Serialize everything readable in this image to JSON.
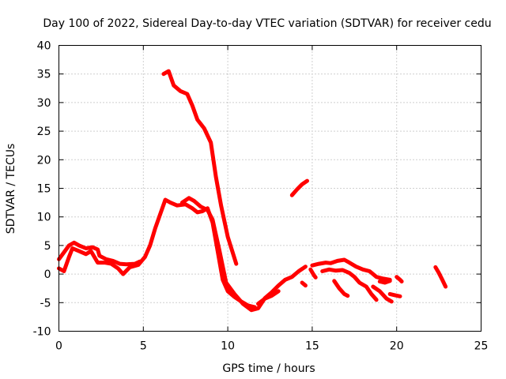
{
  "chart_data": {
    "type": "scatter",
    "title": "Day 100 of 2022, Sidereal Day-to-day VTEC variation (SDTVAR) for receiver cedu",
    "xlabel": "GPS time / hours",
    "ylabel": "SDTVAR / TECUs",
    "xlim": [
      0,
      25
    ],
    "ylim": [
      -10,
      40
    ],
    "xticks": [
      0,
      5,
      10,
      15,
      20,
      25
    ],
    "yticks": [
      -10,
      -5,
      0,
      5,
      10,
      15,
      20,
      25,
      30,
      35,
      40
    ],
    "grid": true,
    "colors": {
      "series": "#ff0000",
      "grid": "#a0a0a0",
      "axis": "#000000"
    },
    "series": [
      {
        "name": "trace-1",
        "points": [
          [
            0,
            1
          ],
          [
            0.3,
            0.5
          ],
          [
            0.6,
            3
          ],
          [
            0.8,
            4.5
          ],
          [
            1.2,
            4
          ],
          [
            1.6,
            3.5
          ],
          [
            1.9,
            4
          ],
          [
            2.3,
            2
          ],
          [
            2.7,
            2
          ],
          [
            3.1,
            1.8
          ],
          [
            3.5,
            1
          ],
          [
            3.8,
            0
          ],
          [
            4.2,
            1.2
          ],
          [
            4.7,
            1.6
          ],
          [
            5.1,
            3
          ],
          [
            5.4,
            5
          ],
          [
            5.7,
            8
          ],
          [
            6,
            10.5
          ],
          [
            6.3,
            13
          ],
          [
            6.6,
            12.5
          ],
          [
            7,
            12
          ],
          [
            7.5,
            12.2
          ],
          [
            7.9,
            11.5
          ],
          [
            8.2,
            10.8
          ],
          [
            8.5,
            11
          ],
          [
            8.8,
            11.5
          ],
          [
            9.1,
            9
          ],
          [
            9.4,
            4
          ],
          [
            9.7,
            -1
          ],
          [
            10,
            -3
          ],
          [
            10.4,
            -4
          ],
          [
            10.8,
            -4.8
          ],
          [
            11.2,
            -5.5
          ],
          [
            11.6,
            -5.8
          ]
        ]
      },
      {
        "name": "trace-2",
        "points": [
          [
            0,
            2.6
          ],
          [
            0.3,
            3.8
          ],
          [
            0.6,
            5
          ],
          [
            0.9,
            5.5
          ],
          [
            1.2,
            5
          ],
          [
            1.6,
            4.5
          ],
          [
            2,
            4.7
          ],
          [
            2.3,
            4.3
          ],
          [
            2.4,
            3.2
          ],
          [
            2.8,
            2.6
          ],
          [
            3.2,
            2.3
          ],
          [
            3.6,
            1.8
          ],
          [
            4,
            1.7
          ],
          [
            4.5,
            1.8
          ],
          [
            4.8,
            2.2
          ]
        ]
      },
      {
        "name": "trace-3",
        "points": [
          [
            6.2,
            35
          ],
          [
            6.5,
            35.5
          ],
          [
            6.8,
            33
          ],
          [
            7.2,
            32
          ],
          [
            7.6,
            31.5
          ],
          [
            7.9,
            29.5
          ],
          [
            8.2,
            27
          ],
          [
            8.6,
            25.5
          ],
          [
            9,
            23
          ],
          [
            9.3,
            17
          ],
          [
            9.6,
            12
          ],
          [
            10,
            6.5
          ],
          [
            10.5,
            1.8
          ]
        ]
      },
      {
        "name": "trace-4",
        "points": [
          [
            7.3,
            12.5
          ],
          [
            7.7,
            13.3
          ],
          [
            8,
            12.8
          ],
          [
            8.4,
            11.8
          ],
          [
            8.8,
            11.2
          ],
          [
            9.1,
            9.5
          ],
          [
            9.5,
            4.2
          ],
          [
            9.9,
            -1.5
          ],
          [
            10.4,
            -3.5
          ],
          [
            10.9,
            -5.2
          ],
          [
            11.4,
            -6.3
          ],
          [
            11.8,
            -6
          ],
          [
            12.2,
            -4.2
          ],
          [
            12.6,
            -3.2
          ],
          [
            13,
            -2
          ],
          [
            13.4,
            -1
          ],
          [
            13.8,
            -0.5
          ],
          [
            14.2,
            0.5
          ],
          [
            14.6,
            1.3
          ]
        ]
      },
      {
        "name": "trace-5",
        "points": [
          [
            11.8,
            -5.2
          ],
          [
            12.2,
            -4.3
          ],
          [
            12.6,
            -3.8
          ],
          [
            13,
            -3
          ]
        ]
      },
      {
        "name": "trace-6",
        "points": [
          [
            13.8,
            13.8
          ],
          [
            14.1,
            14.8
          ],
          [
            14.4,
            15.7
          ],
          [
            14.7,
            16.3
          ]
        ]
      },
      {
        "name": "trace-7",
        "points": [
          [
            14.4,
            -1.5
          ],
          [
            14.6,
            -2
          ]
        ]
      },
      {
        "name": "trace-8",
        "points": [
          [
            15,
            1.5
          ],
          [
            15.4,
            1.8
          ],
          [
            15.8,
            2
          ],
          [
            16.1,
            1.9
          ],
          [
            16.5,
            2.3
          ],
          [
            16.9,
            2.5
          ],
          [
            17.2,
            2
          ],
          [
            17.6,
            1.3
          ],
          [
            18,
            0.8
          ],
          [
            18.4,
            0.5
          ],
          [
            18.8,
            -0.5
          ],
          [
            19.2,
            -0.8
          ],
          [
            19.6,
            -1
          ]
        ]
      },
      {
        "name": "trace-9",
        "points": [
          [
            15.6,
            0.5
          ],
          [
            16,
            0.8
          ],
          [
            16.4,
            0.6
          ],
          [
            16.8,
            0.7
          ],
          [
            17.2,
            0.2
          ],
          [
            17.5,
            -0.5
          ],
          [
            17.8,
            -1.5
          ],
          [
            18.2,
            -2.2
          ],
          [
            18.5,
            -3.5
          ],
          [
            18.8,
            -4.5
          ]
        ]
      },
      {
        "name": "trace-10",
        "points": [
          [
            16.3,
            -1.2
          ],
          [
            16.6,
            -2.5
          ],
          [
            16.9,
            -3.5
          ],
          [
            17.1,
            -3.8
          ]
        ]
      },
      {
        "name": "trace-11",
        "points": [
          [
            18.6,
            -2.2
          ],
          [
            19,
            -3
          ],
          [
            19.4,
            -4.3
          ],
          [
            19.7,
            -4.8
          ]
        ]
      },
      {
        "name": "trace-12",
        "points": [
          [
            19,
            -1.3
          ],
          [
            19.3,
            -1.5
          ],
          [
            19.6,
            -1.2
          ]
        ]
      },
      {
        "name": "trace-13",
        "points": [
          [
            19.6,
            -3.5
          ],
          [
            19.9,
            -3.7
          ],
          [
            20.2,
            -3.9
          ]
        ]
      },
      {
        "name": "trace-14",
        "points": [
          [
            20,
            -0.5
          ],
          [
            20.2,
            -1
          ],
          [
            20.3,
            -1.3
          ]
        ]
      },
      {
        "name": "trace-15",
        "points": [
          [
            22.3,
            1.2
          ],
          [
            22.5,
            0.2
          ],
          [
            22.7,
            -1
          ],
          [
            22.9,
            -2.2
          ]
        ]
      },
      {
        "name": "trace-16",
        "points": [
          [
            14.9,
            0.8
          ],
          [
            15.1,
            -0.2
          ],
          [
            15.2,
            -0.6
          ]
        ]
      }
    ]
  }
}
